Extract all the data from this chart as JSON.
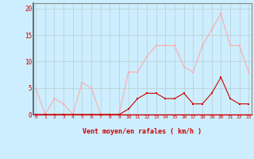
{
  "x": [
    0,
    1,
    2,
    3,
    4,
    5,
    6,
    7,
    8,
    9,
    10,
    11,
    12,
    13,
    14,
    15,
    16,
    17,
    18,
    19,
    20,
    21,
    22,
    23
  ],
  "rafales": [
    5,
    0,
    3,
    2,
    0,
    6,
    5,
    0,
    0,
    0,
    8,
    8,
    11,
    13,
    13,
    13,
    9,
    8,
    13,
    16,
    19,
    13,
    13,
    8
  ],
  "moyen": [
    0,
    0,
    0,
    0,
    0,
    0,
    0,
    0,
    0,
    0,
    1,
    3,
    4,
    4,
    3,
    3,
    4,
    2,
    2,
    4,
    7,
    3,
    2,
    2
  ],
  "bg_color": "#cceeff",
  "grid_color": "#bbcccc",
  "line_color_rafales": "#ffaaaa",
  "line_color_moyen": "#cc0000",
  "marker_color_rafales": "#ffaaaa",
  "marker_color_moyen": "#cc0000",
  "xlabel": "Vent moyen/en rafales ( km/h )",
  "xlabel_color": "#cc0000",
  "tick_color": "#cc0000",
  "spine_color": "#888888",
  "ylim": [
    0,
    21
  ],
  "yticks": [
    0,
    5,
    10,
    15,
    20
  ],
  "figsize": [
    3.2,
    2.0
  ],
  "dpi": 100
}
